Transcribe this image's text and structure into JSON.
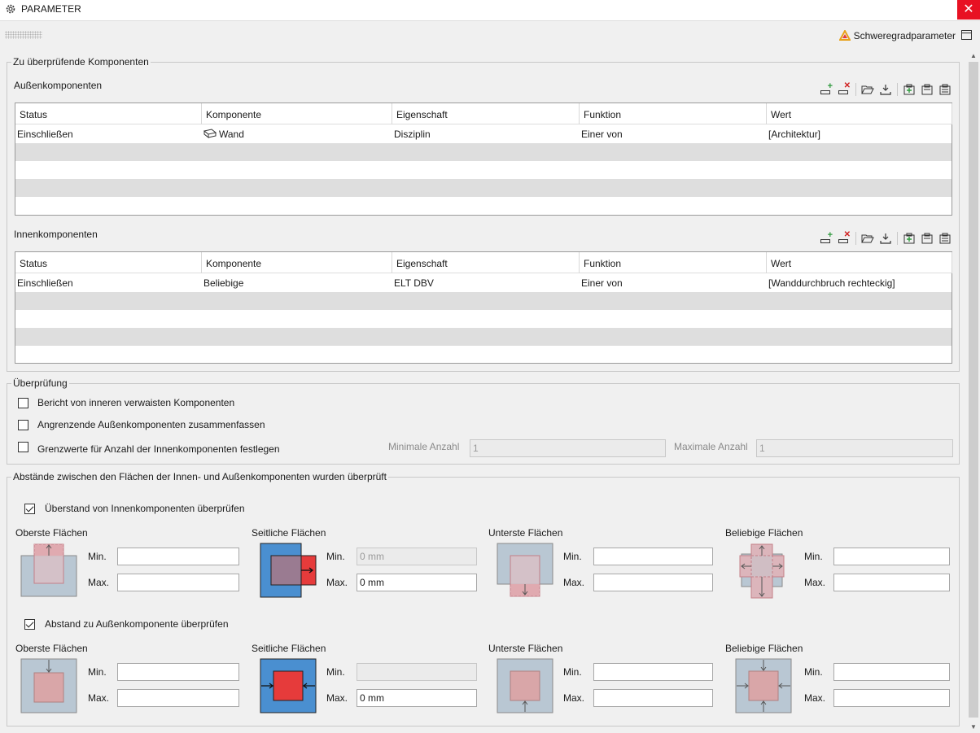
{
  "window": {
    "title": "PARAMETER",
    "close_glyph": "✕",
    "severity_link": "Schweregradparameter"
  },
  "components": {
    "legend": "Zu überprüfende Komponenten",
    "outer": {
      "title": "Außenkomponenten",
      "columns": [
        "Status",
        "Komponente",
        "Eigenschaft",
        "Funktion",
        "Wert"
      ],
      "rows": [
        {
          "status": "Einschließen",
          "component": "Wand",
          "property": "Disziplin",
          "function": "Einer von",
          "value": "[Architektur]"
        }
      ]
    },
    "inner": {
      "title": "Innenkomponenten",
      "columns": [
        "Status",
        "Komponente",
        "Eigenschaft",
        "Funktion",
        "Wert"
      ],
      "rows": [
        {
          "status": "Einschließen",
          "component": "Beliebige",
          "property": "ELT DBV",
          "function": "Einer von",
          "value": "[Wanddurchbruch rechteckig]"
        }
      ]
    }
  },
  "check": {
    "legend": "Überprüfung",
    "report_orphans": {
      "label": "Bericht von inneren verwaisten Komponenten",
      "checked": false
    },
    "merge_adjacent": {
      "label": "Angrenzende Außenkomponenten zusammenfassen",
      "checked": false
    },
    "limits": {
      "label": "Grenzwerte für Anzahl der Innenkomponenten festlegen",
      "checked": false
    },
    "min_count_label": "Minimale Anzahl",
    "min_count_value": "1",
    "max_count_label": "Maximale Anzahl",
    "max_count_value": "1"
  },
  "distances": {
    "legend": "Abstände zwischen den Flächen der Innen- und Außenkomponenten wurden überprüft",
    "min_label": "Min.",
    "max_label": "Max.",
    "overhang": {
      "label": "Überstand von Innenkomponenten überprüfen",
      "checked": true,
      "top": "Oberste Flächen",
      "side": "Seitliche Flächen",
      "bottom": "Unterste Flächen",
      "any": "Beliebige Flächen",
      "top_min": "",
      "top_max": "",
      "side_min": "0 mm",
      "side_max": "0 mm",
      "bottom_min": "",
      "bottom_max": "",
      "any_min": "",
      "any_max": ""
    },
    "outer_distance": {
      "label": "Abstand zu Außenkomponente überprüfen",
      "checked": true,
      "top": "Oberste Flächen",
      "side": "Seitliche Flächen",
      "bottom": "Unterste Flächen",
      "any": "Beliebige Flächen",
      "top_min": "",
      "top_max": "",
      "side_min": "",
      "side_max": "0 mm",
      "bottom_min": "",
      "bottom_max": "",
      "any_min": "",
      "any_max": ""
    }
  },
  "icons": {
    "settings": "gear-icon",
    "severity": "warning-triangle-icon",
    "panel": "panel-toggle-icon",
    "add_row": "add-row-icon",
    "delete_row": "delete-row-icon",
    "open": "folder-open-icon",
    "save": "download-icon",
    "wall": "wall-icon"
  },
  "colors": {
    "accent_red": "#e63b3b",
    "outer_blue": "#4a8fd0",
    "frame_grey": "#b9c7d3",
    "inner_pink": "#d7a9a9"
  }
}
